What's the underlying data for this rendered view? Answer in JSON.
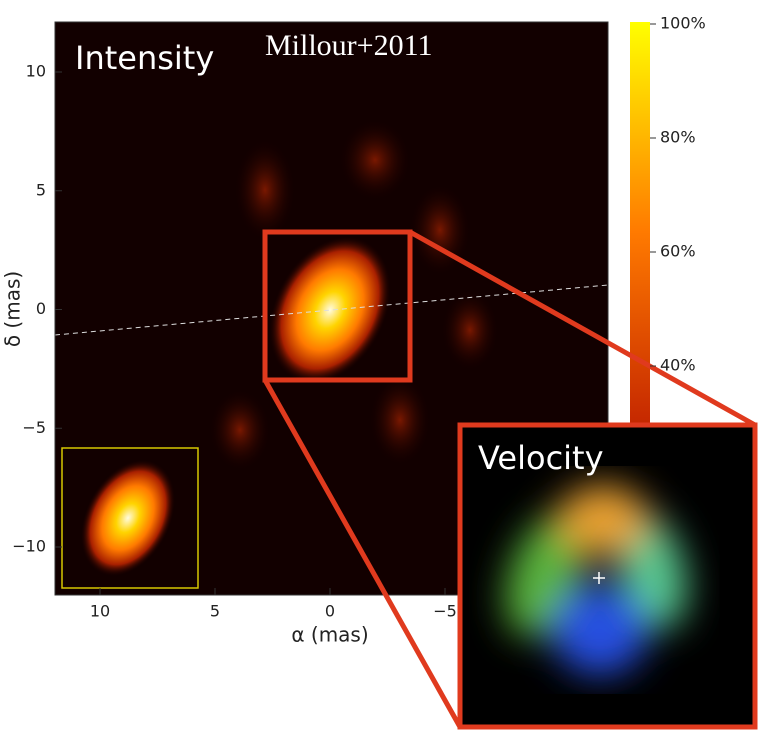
{
  "panel": {
    "title": "Intensity",
    "credit": "Millour+2011",
    "x_axis": {
      "label": "α (mas)",
      "ticks": [
        "10",
        "5",
        "0",
        "−5"
      ]
    },
    "y_axis": {
      "label": "δ (mas)",
      "ticks": [
        "10",
        "5",
        "0",
        "−5",
        "−10"
      ]
    }
  },
  "colorbar": {
    "ticks": [
      "100%",
      "80%",
      "60%",
      "40%"
    ]
  },
  "inset": {
    "title": "Velocity"
  }
}
